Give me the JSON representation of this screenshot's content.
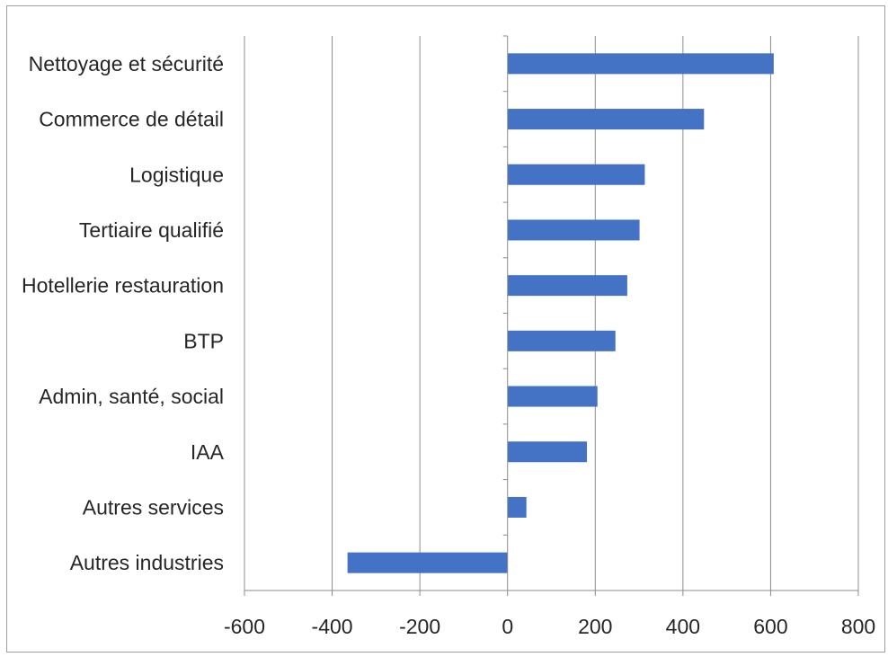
{
  "chart_data": {
    "type": "bar",
    "orientation": "horizontal",
    "categories": [
      "Nettoyage et sécurité",
      "Commerce de détail",
      "Logistique",
      "Tertiaire qualifié",
      "Hotellerie restauration",
      "BTP",
      "Admin, santé, social",
      "IAA",
      "Autres services",
      "Autres industries"
    ],
    "values": [
      607,
      448,
      313,
      301,
      273,
      246,
      205,
      181,
      43,
      -365
    ],
    "xlim": [
      -600,
      800
    ],
    "xticks": [
      "-600",
      "-400",
      "-200",
      "0",
      "200",
      "400",
      "600",
      "800"
    ],
    "xtick_values": [
      -600,
      -400,
      -200,
      0,
      200,
      400,
      600,
      800
    ],
    "grid": "vertical",
    "legend": "none",
    "bar_color": "#4472c4",
    "grid_color": "#8c8c8c",
    "axis_color": "#8c8c8c",
    "text_color": "#262626"
  }
}
